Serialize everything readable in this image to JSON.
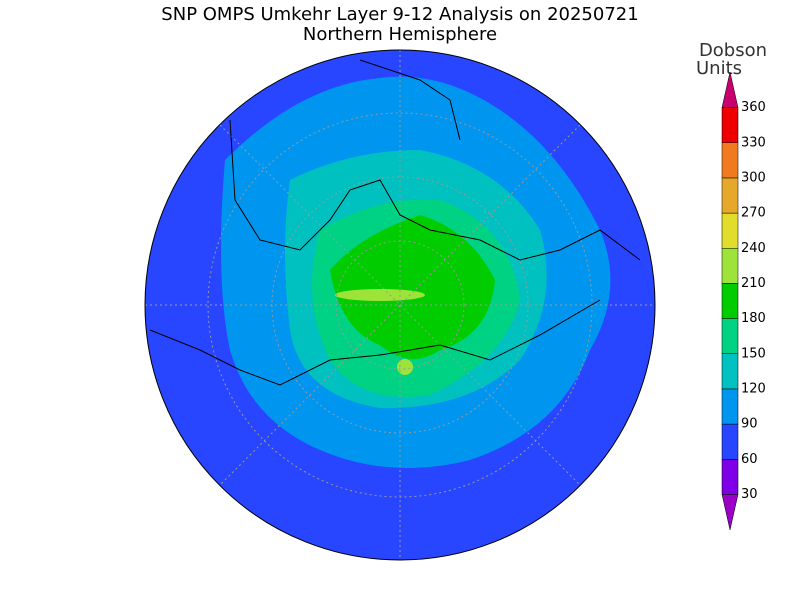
{
  "title": "SNP OMPS Umkehr Layer 9-12 Analysis on 20250721",
  "subtitle": "Northern Hemisphere",
  "colorbar": {
    "label_lines": [
      "Dobson",
      "Units"
    ],
    "ticks": [
      30,
      60,
      90,
      120,
      150,
      180,
      210,
      240,
      270,
      300,
      330,
      360
    ],
    "colors": [
      "#9a00c8",
      "#7f00e6",
      "#2846ff",
      "#0096f0",
      "#00c0c0",
      "#00d284",
      "#00cc00",
      "#9ee33a",
      "#e2dc2c",
      "#e6a82a",
      "#f07a20",
      "#ee0000",
      "#c8006e"
    ]
  }
}
